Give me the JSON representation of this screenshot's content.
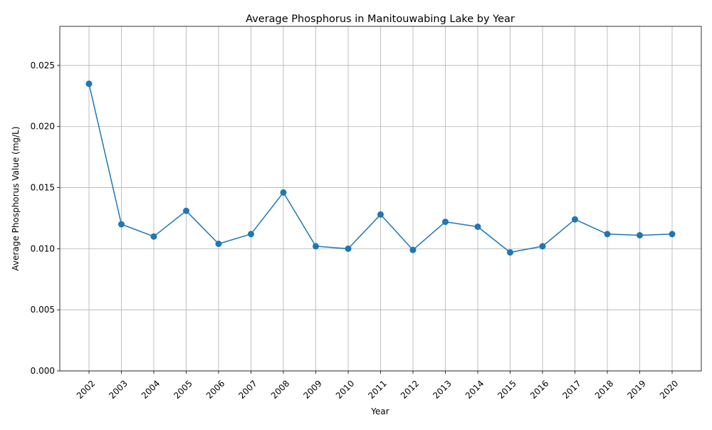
{
  "chart_data": {
    "type": "line",
    "title": "Average Phosphorus in Manitouwabing Lake by Year",
    "xlabel": "Year",
    "ylabel": "Average Phosphorus Value (mg/L)",
    "categories": [
      "2002",
      "2003",
      "2004",
      "2005",
      "2006",
      "2007",
      "2008",
      "2009",
      "2010",
      "2011",
      "2012",
      "2013",
      "2014",
      "2015",
      "2016",
      "2017",
      "2018",
      "2019",
      "2020"
    ],
    "series": [
      {
        "values": [
          0.0235,
          0.012,
          0.011,
          0.0131,
          0.0104,
          0.0112,
          0.0146,
          0.0102,
          0.01,
          0.0128,
          0.0099,
          0.0122,
          0.0118,
          0.0097,
          0.0102,
          0.0124,
          0.0112,
          0.0111,
          0.0112
        ],
        "color": "#1f77b4",
        "marker": "circle"
      }
    ],
    "ylim": [
      0,
      0.0282
    ],
    "yticks": [
      "0.000",
      "0.005",
      "0.010",
      "0.015",
      "0.020",
      "0.025"
    ],
    "grid": true,
    "legend": "none"
  }
}
